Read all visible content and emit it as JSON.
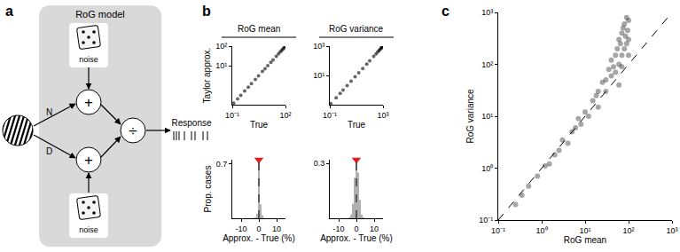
{
  "panel_labels": [
    "a",
    "b",
    "c"
  ],
  "diagram": {
    "title": "RoG model",
    "noise_label": "noise",
    "inputs": [
      "N",
      "D"
    ],
    "operators": [
      "+",
      "+",
      "÷"
    ],
    "output": "Response"
  },
  "column_titles": [
    "RoG mean",
    "RoG variance"
  ],
  "chart_data": [
    {
      "type": "scatter",
      "x_label": "True",
      "y_label": "Taylor approx.",
      "log": true,
      "grid": false,
      "color": "#000000",
      "marker": "circle",
      "x": [
        0.12,
        0.2,
        0.3,
        0.5,
        0.8,
        1.2,
        2,
        3,
        5,
        7,
        10,
        15,
        20,
        30,
        40,
        50,
        60,
        70,
        80,
        90,
        100
      ],
      "y": [
        0.12,
        0.2,
        0.3,
        0.5,
        0.8,
        1.2,
        2,
        3,
        5,
        7,
        10,
        15,
        20,
        30,
        40,
        50,
        60,
        70,
        80,
        90,
        100
      ],
      "xlim": [
        0.1,
        100
      ],
      "ylim": [
        0.1,
        100
      ],
      "xticks": [
        {
          "value": 0.1,
          "label": "10⁻¹"
        },
        {
          "value": 100,
          "label": "10²"
        }
      ],
      "yticks": [
        {
          "value": 10,
          "label": "10¹"
        },
        {
          "value": 100,
          "label": "10²"
        }
      ]
    },
    {
      "type": "scatter",
      "x_label": "True",
      "log": true,
      "grid": false,
      "color": "#000000",
      "marker": "circle",
      "x": [
        0.12,
        0.3,
        0.6,
        1,
        2,
        4,
        8,
        15,
        30,
        60,
        100,
        200,
        300,
        400,
        500,
        600,
        700,
        800,
        900,
        1000
      ],
      "y": [
        0.12,
        0.3,
        0.6,
        1,
        2,
        4,
        8,
        15,
        30,
        60,
        100,
        200,
        300,
        400,
        500,
        600,
        700,
        800,
        900,
        1000
      ],
      "xlim": [
        0.1,
        1000
      ],
      "ylim": [
        0.1,
        1000
      ],
      "xticks": [
        {
          "value": 0.1,
          "label": "10⁻¹"
        },
        {
          "value": 1000,
          "label": "10³"
        }
      ],
      "yticks": [
        {
          "value": 10,
          "label": "10¹"
        },
        {
          "value": 1000,
          "label": "10³"
        }
      ]
    },
    {
      "type": "histogram",
      "x_label": "Approx. - True (%)",
      "y_label": "Prop. cases",
      "grid": false,
      "color": "#b0b0b0",
      "bins": [
        -4.5,
        -3.5,
        -2.5,
        -1.5,
        -0.5,
        0.5,
        1.5,
        2.5,
        3.5,
        4.5
      ],
      "values": [
        0,
        0.005,
        0.01,
        0.06,
        0.7,
        0.18,
        0.04,
        0.005,
        0
      ],
      "mean": {
        "value": 0,
        "color": "#e41a1c",
        "marker": "triangle-down",
        "line_style": "dashed"
      },
      "xlim": [
        -15,
        15
      ],
      "ylim": [
        0,
        0.75
      ],
      "xticks": [
        -10,
        0,
        10
      ],
      "yticks": [
        0.7
      ]
    },
    {
      "type": "histogram",
      "x_label": "Approx. - True (%)",
      "grid": false,
      "color": "#b0b0b0",
      "bins": [
        -4.5,
        -3.5,
        -2.5,
        -1.5,
        -0.5,
        0.5,
        1.5,
        2.5,
        3.5,
        4.5
      ],
      "values": [
        0.005,
        0.02,
        0.08,
        0.22,
        0.3,
        0.25,
        0.1,
        0.02,
        0.005
      ],
      "mean": {
        "value": 0,
        "color": "#e41a1c",
        "marker": "triangle-down",
        "line_style": "dashed"
      },
      "xlim": [
        -15,
        15
      ],
      "ylim": [
        0,
        0.32
      ],
      "xticks": [
        -10,
        0,
        10
      ],
      "yticks": [
        0.3
      ]
    },
    {
      "type": "scatter",
      "x_label": "RoG mean",
      "y_label": "RoG variance",
      "log": true,
      "grid": false,
      "color": "#000000",
      "marker": "circle",
      "x": [
        0.25,
        0.35,
        0.5,
        0.8,
        1.2,
        1.5,
        2,
        2.5,
        3,
        4,
        5,
        6,
        7,
        8,
        10,
        12,
        15,
        18,
        20,
        25,
        30,
        30,
        35,
        40,
        40,
        45,
        50,
        50,
        55,
        60,
        60,
        65,
        70,
        70,
        75,
        80,
        80,
        85,
        90,
        90,
        95,
        100,
        100,
        60,
        20,
        70,
        100
      ],
      "y": [
        0.2,
        0.3,
        0.45,
        0.7,
        1.1,
        1.2,
        1.8,
        2.2,
        3.5,
        3,
        5,
        6,
        9,
        7,
        12,
        10,
        20,
        25,
        30,
        45,
        50,
        30,
        80,
        60,
        120,
        90,
        150,
        70,
        200,
        100,
        300,
        250,
        150,
        400,
        500,
        200,
        600,
        350,
        800,
        250,
        450,
        700,
        300,
        40,
        15,
        90,
        150
      ],
      "identity_line": {
        "x": [
          0.1,
          1000
        ],
        "y": [
          0.1,
          1000
        ],
        "line_style": "dashed"
      },
      "xlim": [
        0.1,
        1000
      ],
      "ylim": [
        0.1,
        1000
      ],
      "xticks": [
        {
          "value": 0.1,
          "label": "10⁻¹"
        },
        {
          "value": 1,
          "label": "10⁰"
        },
        {
          "value": 10,
          "label": "10¹"
        },
        {
          "value": 100,
          "label": "10²"
        },
        {
          "value": 1000,
          "label": "10³"
        }
      ],
      "yticks": [
        {
          "value": 0.1,
          "label": "10⁻¹"
        },
        {
          "value": 1,
          "label": "10⁰"
        },
        {
          "value": 10,
          "label": "10¹"
        },
        {
          "value": 100,
          "label": "10²"
        },
        {
          "value": 1000,
          "label": "10³"
        }
      ]
    }
  ]
}
